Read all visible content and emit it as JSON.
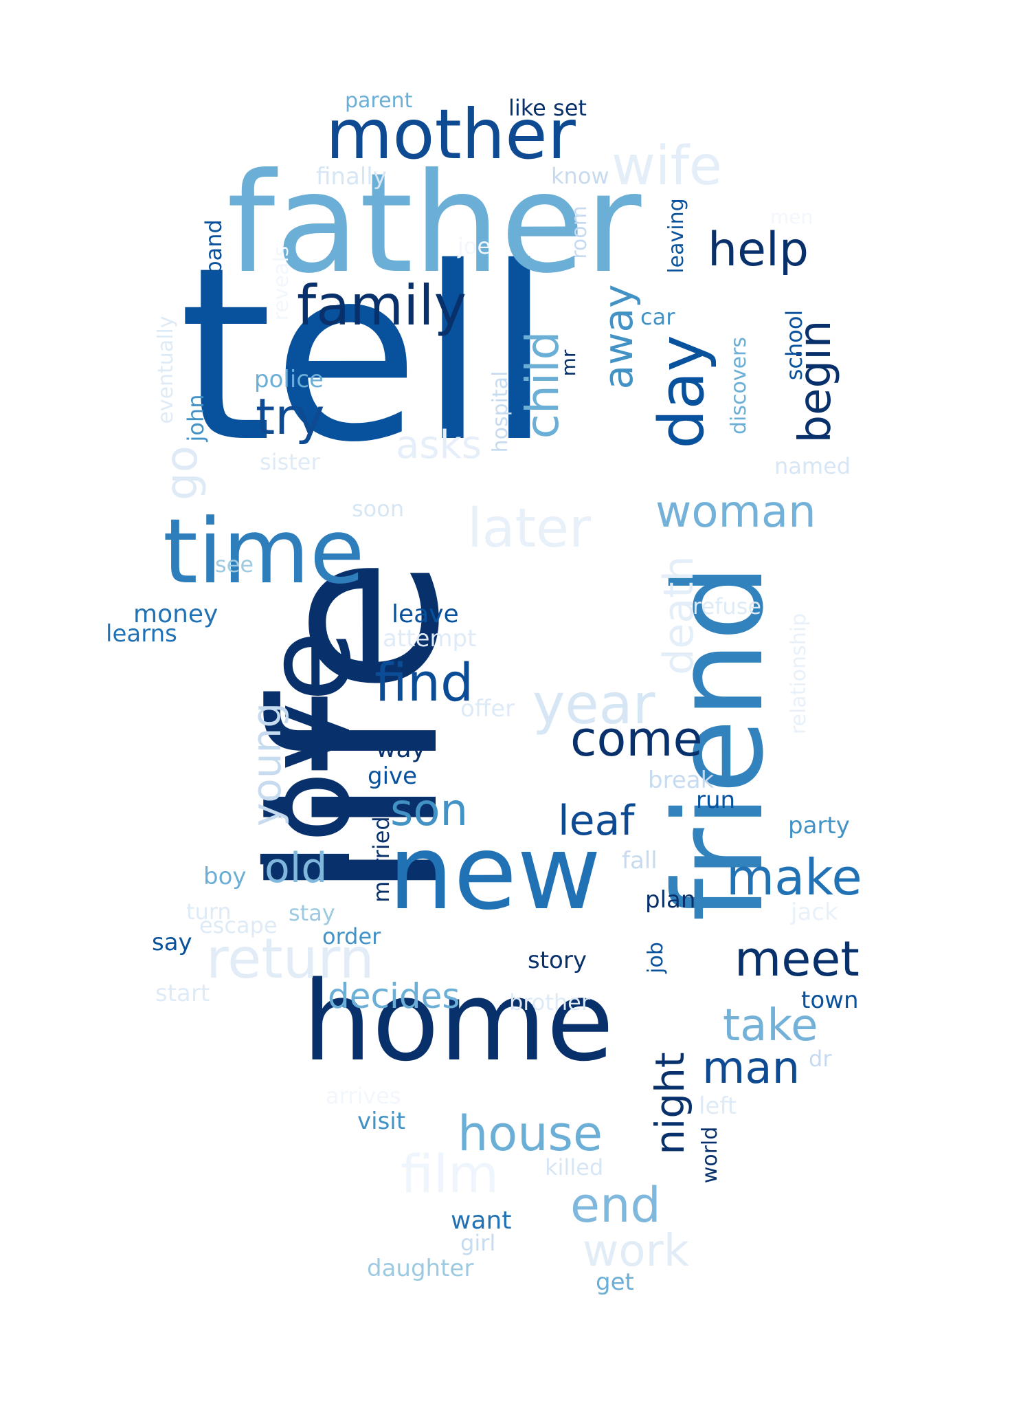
{
  "colors": {
    "background": "#ffffff",
    "darkest": "#08306b",
    "dark": "#08519c",
    "mid_dark": "#2171b5",
    "mid": "#4292c6",
    "mid_light": "#6baed6",
    "light": "#9ecae1",
    "lighter": "#c6dbef",
    "lightest": "#deebf7",
    "palest": "#eef5fc"
  },
  "words": [
    {
      "text": "tell",
      "color": "#08519c"
    },
    {
      "text": "life",
      "color": "#08306b"
    },
    {
      "text": "father",
      "color": "#6baed6"
    },
    {
      "text": "friend",
      "color": "#3182bd"
    },
    {
      "text": "love",
      "color": "#08306b"
    },
    {
      "text": "new",
      "color": "#2171b5"
    },
    {
      "text": "home",
      "color": "#08306b"
    },
    {
      "text": "time",
      "color": "#2e7ebc"
    },
    {
      "text": "mother",
      "color": "#0d4a92"
    },
    {
      "text": "day",
      "color": "#08519c"
    },
    {
      "text": "family",
      "color": "#08306b"
    },
    {
      "text": "help",
      "color": "#08306b"
    },
    {
      "text": "wife",
      "color": "#e4eef8"
    },
    {
      "text": "later",
      "color": "#e8f1fa"
    },
    {
      "text": "year",
      "color": "#d6e6f4"
    },
    {
      "text": "return",
      "color": "#e1ecf7"
    },
    {
      "text": "find",
      "color": "#0b4c96"
    },
    {
      "text": "come",
      "color": "#08306b"
    },
    {
      "text": "try",
      "color": "#0d4a92"
    },
    {
      "text": "child",
      "color": "#6baed6"
    },
    {
      "text": "begin",
      "color": "#08306b"
    },
    {
      "text": "away",
      "color": "#4292c6"
    },
    {
      "text": "woman",
      "color": "#74b1d8"
    },
    {
      "text": "death",
      "color": "#e4eef8"
    },
    {
      "text": "young",
      "color": "#c6dbef"
    },
    {
      "text": "go",
      "color": "#deebf7"
    },
    {
      "text": "asks",
      "color": "#e6eff9"
    },
    {
      "text": "son",
      "color": "#4292c6"
    },
    {
      "text": "leaf",
      "color": "#0d4a92"
    },
    {
      "text": "old",
      "color": "#7fb8dc"
    },
    {
      "text": "make",
      "color": "#2171b5"
    },
    {
      "text": "meet",
      "color": "#08306b"
    },
    {
      "text": "decides",
      "color": "#6baed6"
    },
    {
      "text": "take",
      "color": "#74b1d8"
    },
    {
      "text": "man",
      "color": "#0d4a92"
    },
    {
      "text": "house",
      "color": "#6baed6"
    },
    {
      "text": "night",
      "color": "#08306b"
    },
    {
      "text": "end",
      "color": "#7fb8dc"
    },
    {
      "text": "film",
      "color": "#eef5fc"
    },
    {
      "text": "work",
      "color": "#e1ecf7"
    },
    {
      "text": "parent",
      "color": "#6baed6"
    },
    {
      "text": "like set",
      "color": "#08306b"
    },
    {
      "text": "finally",
      "color": "#d6e6f4"
    },
    {
      "text": "know",
      "color": "#c6dbef"
    },
    {
      "text": "men",
      "color": "#f2f7fd"
    },
    {
      "text": "joe",
      "color": "#f2f7fd"
    },
    {
      "text": "room",
      "color": "#c6dbef"
    },
    {
      "text": "leaving",
      "color": "#08519c"
    },
    {
      "text": "husband",
      "color": "#08519c"
    },
    {
      "text": "reveals",
      "color": "#f2f7fd"
    },
    {
      "text": "eventually",
      "color": "#deebf7"
    },
    {
      "text": "car",
      "color": "#4292c6"
    },
    {
      "text": "mr",
      "color": "#08306b"
    },
    {
      "text": "hospital",
      "color": "#c6dbef"
    },
    {
      "text": "discovers",
      "color": "#6baed6"
    },
    {
      "text": "school",
      "color": "#08519c"
    },
    {
      "text": "police",
      "color": "#6baed6"
    },
    {
      "text": "john",
      "color": "#4292c6"
    },
    {
      "text": "sister",
      "color": "#deebf7"
    },
    {
      "text": "named",
      "color": "#d6e6f4"
    },
    {
      "text": "soon",
      "color": "#d6e6f4"
    },
    {
      "text": "see",
      "color": "#9ecae1"
    },
    {
      "text": "refuse",
      "color": "#deebf7"
    },
    {
      "text": "relationship",
      "color": "#e8f1fa"
    },
    {
      "text": "money",
      "color": "#2171b5"
    },
    {
      "text": "learns",
      "color": "#2171b5"
    },
    {
      "text": "leave",
      "color": "#08519c"
    },
    {
      "text": "attempt",
      "color": "#deebf7"
    },
    {
      "text": "offer",
      "color": "#deebf7"
    },
    {
      "text": "way",
      "color": "#08306b"
    },
    {
      "text": "give",
      "color": "#08519c"
    },
    {
      "text": "break",
      "color": "#c6dbef"
    },
    {
      "text": "run",
      "color": "#08519c"
    },
    {
      "text": "party",
      "color": "#4292c6"
    },
    {
      "text": "married",
      "color": "#08306b"
    },
    {
      "text": "fall",
      "color": "#c6dbef"
    },
    {
      "text": "boy",
      "color": "#6baed6"
    },
    {
      "text": "turn",
      "color": "#deebf7"
    },
    {
      "text": "stay",
      "color": "#9ecae1"
    },
    {
      "text": "escape",
      "color": "#deebf7"
    },
    {
      "text": "order",
      "color": "#4292c6"
    },
    {
      "text": "say",
      "color": "#08519c"
    },
    {
      "text": "plan",
      "color": "#08306b"
    },
    {
      "text": "jack",
      "color": "#e8f1fa"
    },
    {
      "text": "story",
      "color": "#08306b"
    },
    {
      "text": "job",
      "color": "#08519c"
    },
    {
      "text": "town",
      "color": "#08519c"
    },
    {
      "text": "start",
      "color": "#deebf7"
    },
    {
      "text": "brother",
      "color": "#deebf7"
    },
    {
      "text": "dr",
      "color": "#c6dbef"
    },
    {
      "text": "arrives",
      "color": "#f2f7fd"
    },
    {
      "text": "left",
      "color": "#deebf7"
    },
    {
      "text": "visit",
      "color": "#4292c6"
    },
    {
      "text": "world",
      "color": "#08306b"
    },
    {
      "text": "killed",
      "color": "#d6e6f4"
    },
    {
      "text": "want",
      "color": "#2171b5"
    },
    {
      "text": "girl",
      "color": "#c6dbef"
    },
    {
      "text": "daughter",
      "color": "#9ecae1"
    },
    {
      "text": "get",
      "color": "#6baed6"
    }
  ]
}
